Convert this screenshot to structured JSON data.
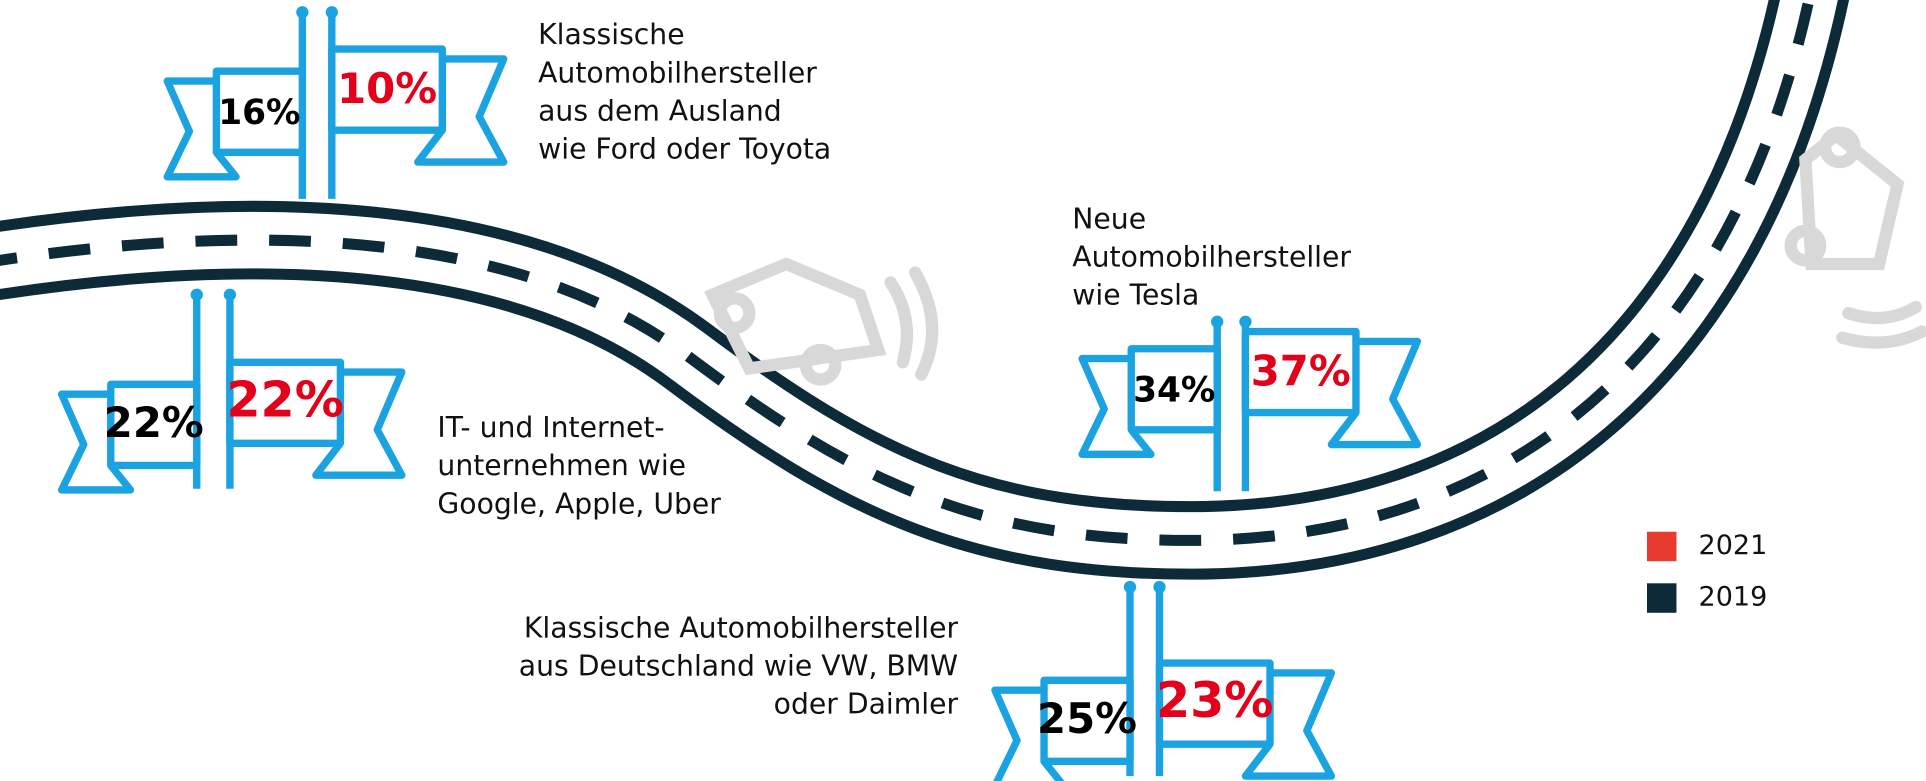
{
  "chart_data": {
    "type": "flags",
    "categories": [
      "Klassische\nAutomobilhersteller\naus dem Ausland\nwie Ford oder Toyota",
      "IT- und Internet-\nunternehmen wie\nGoogle, Apple, Uber",
      "Neue\nAutomobilhersteller\nwie Tesla",
      "Klassische Automobilhersteller\naus Deutschland wie VW, BMW\noder Daimler"
    ],
    "series": [
      {
        "name": "2021",
        "color": "#e63b2e",
        "values": [
          10,
          22,
          37,
          23
        ],
        "value_labels": [
          "10%",
          "22%",
          "37%",
          "23%"
        ]
      },
      {
        "name": "2019",
        "color": "#0d2a38",
        "values": [
          16,
          22,
          34,
          25
        ],
        "value_labels": [
          "16%",
          "22%",
          "34%",
          "25%"
        ]
      }
    ]
  }
}
